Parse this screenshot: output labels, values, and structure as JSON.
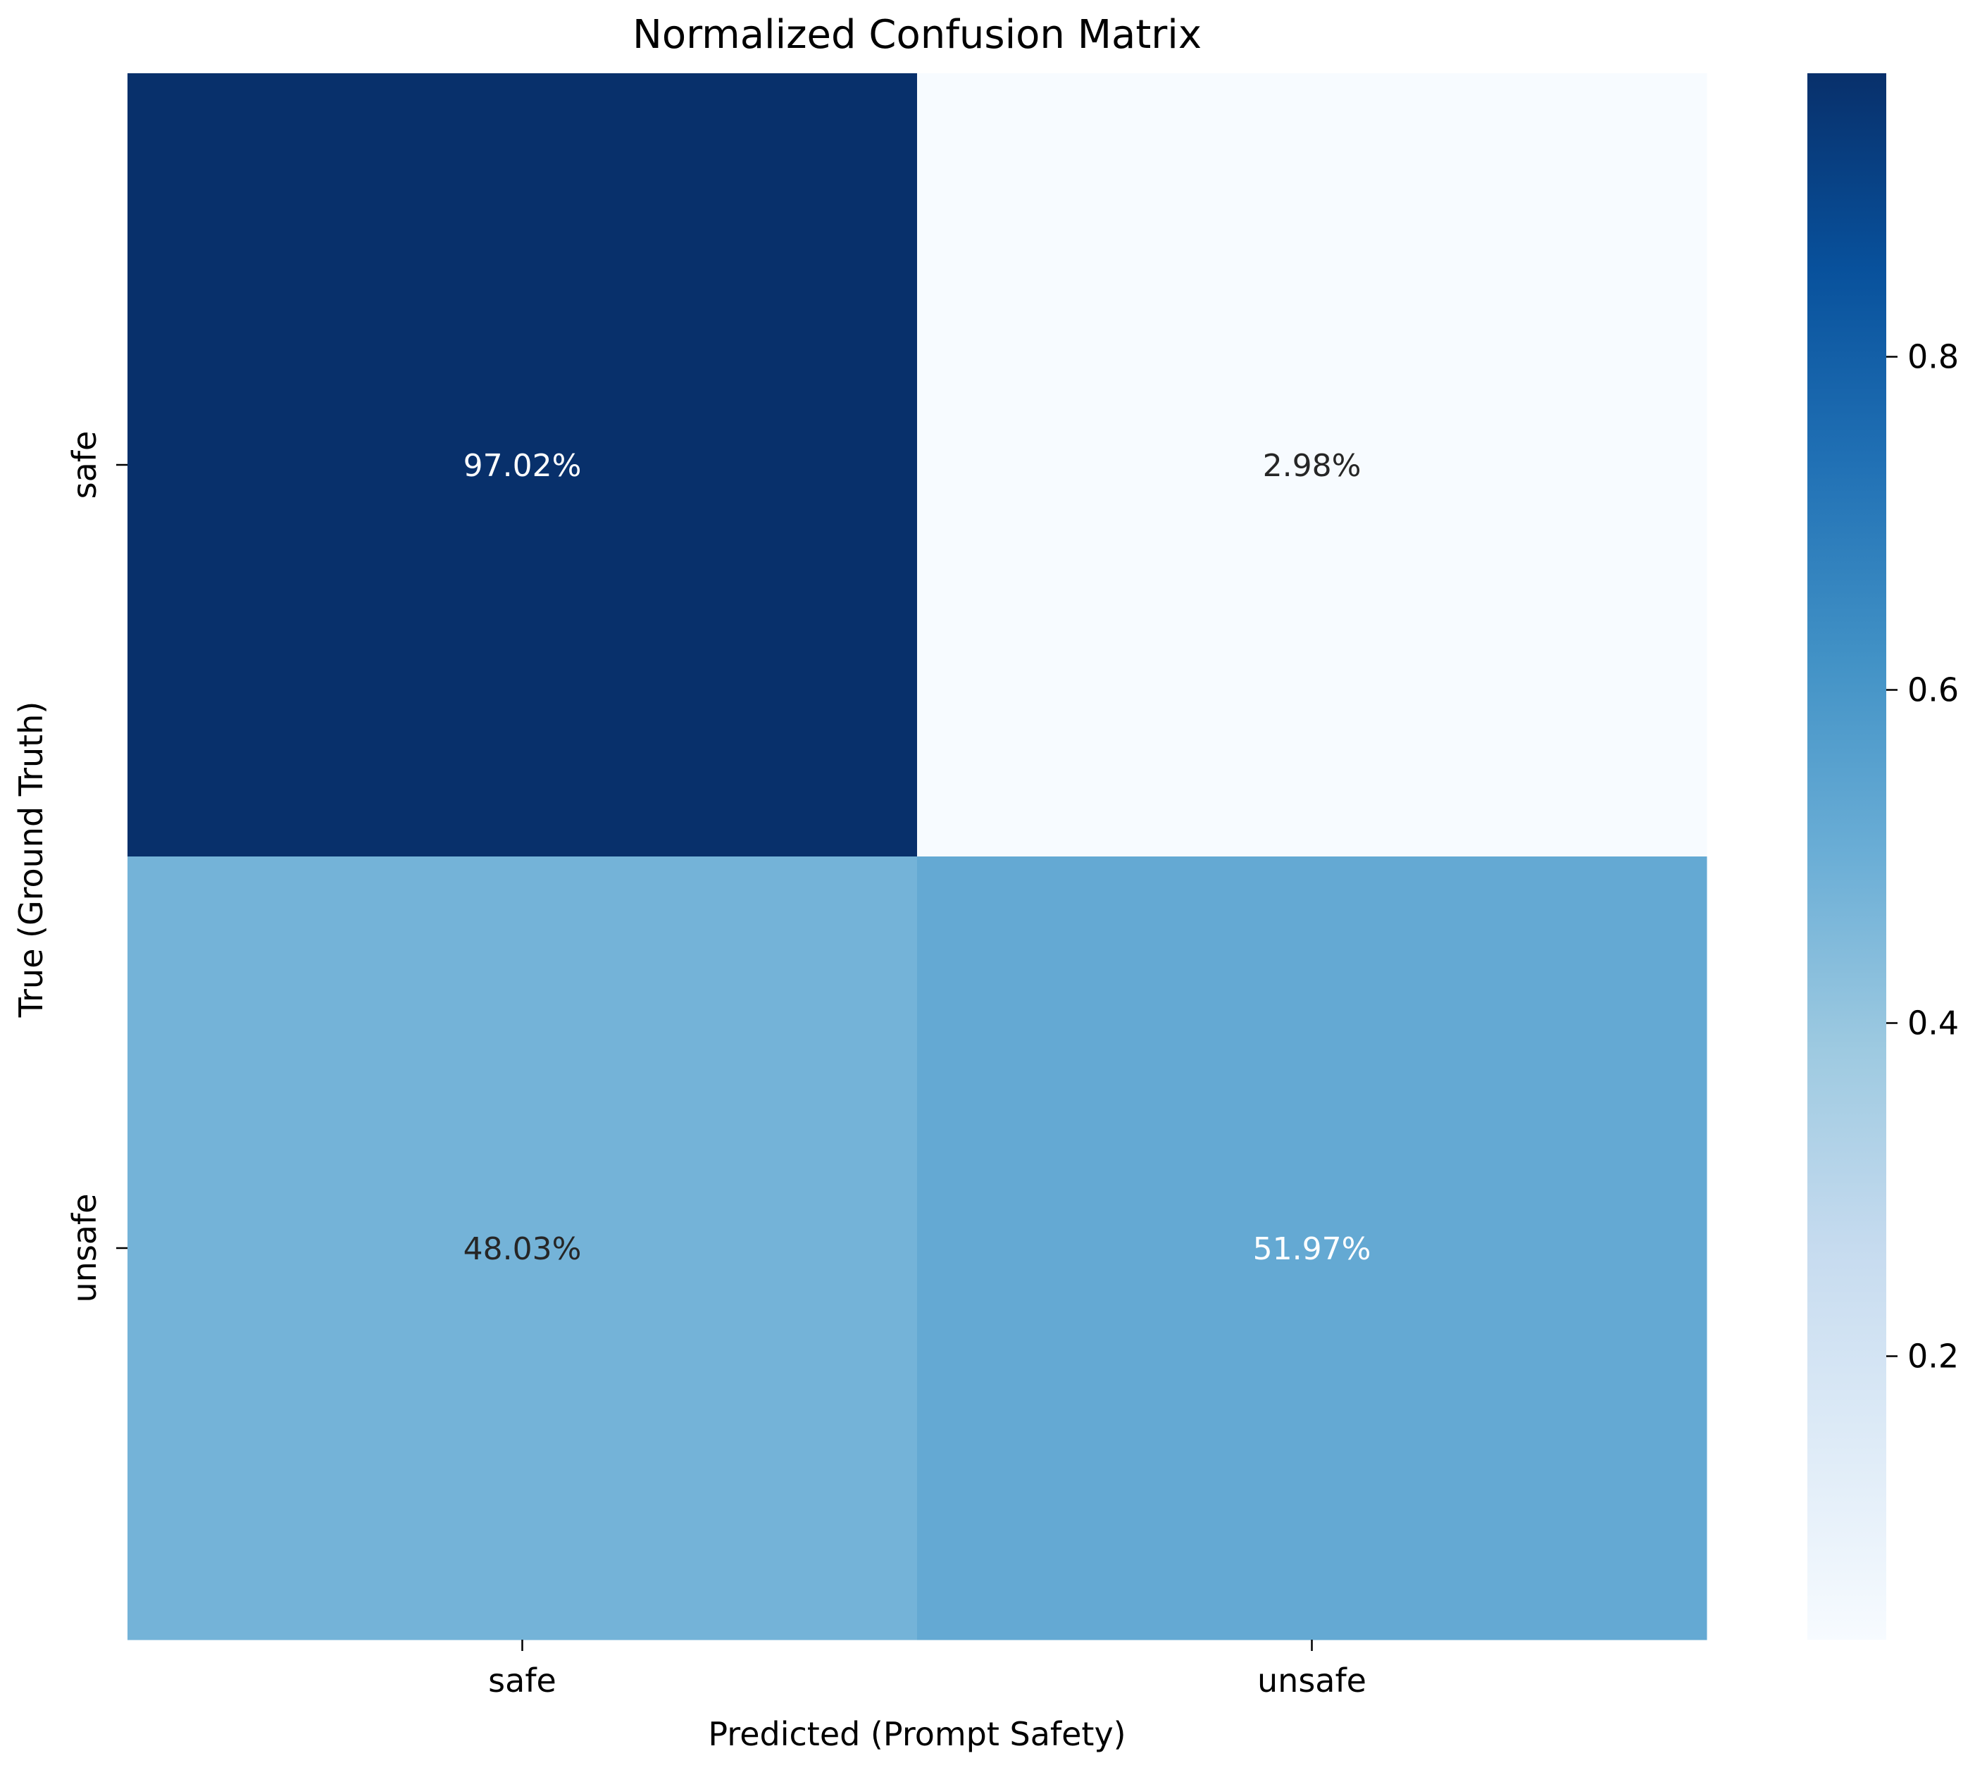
{
  "chart_data": {
    "type": "heatmap",
    "title": "Normalized Confusion Matrix",
    "xlabel": "Predicted (Prompt Safety)",
    "ylabel": "True (Ground Truth)",
    "x_categories": [
      "safe",
      "unsafe"
    ],
    "y_categories": [
      "safe",
      "unsafe"
    ],
    "values": [
      [
        0.9702,
        0.0298
      ],
      [
        0.4803,
        0.5197
      ]
    ],
    "cell_labels": [
      [
        "97.02%",
        "2.98%"
      ],
      [
        "48.03%",
        "51.97%"
      ]
    ],
    "colormap": "Blues",
    "colorbar": {
      "range": [
        0.0298,
        0.9702
      ],
      "ticks": [
        0.2,
        0.4,
        0.6,
        0.8
      ],
      "tick_labels": [
        "0.2",
        "0.4",
        "0.6",
        "0.8"
      ]
    },
    "colors": {
      "text_dark": "#262626",
      "text_light": "#ffffff"
    }
  }
}
